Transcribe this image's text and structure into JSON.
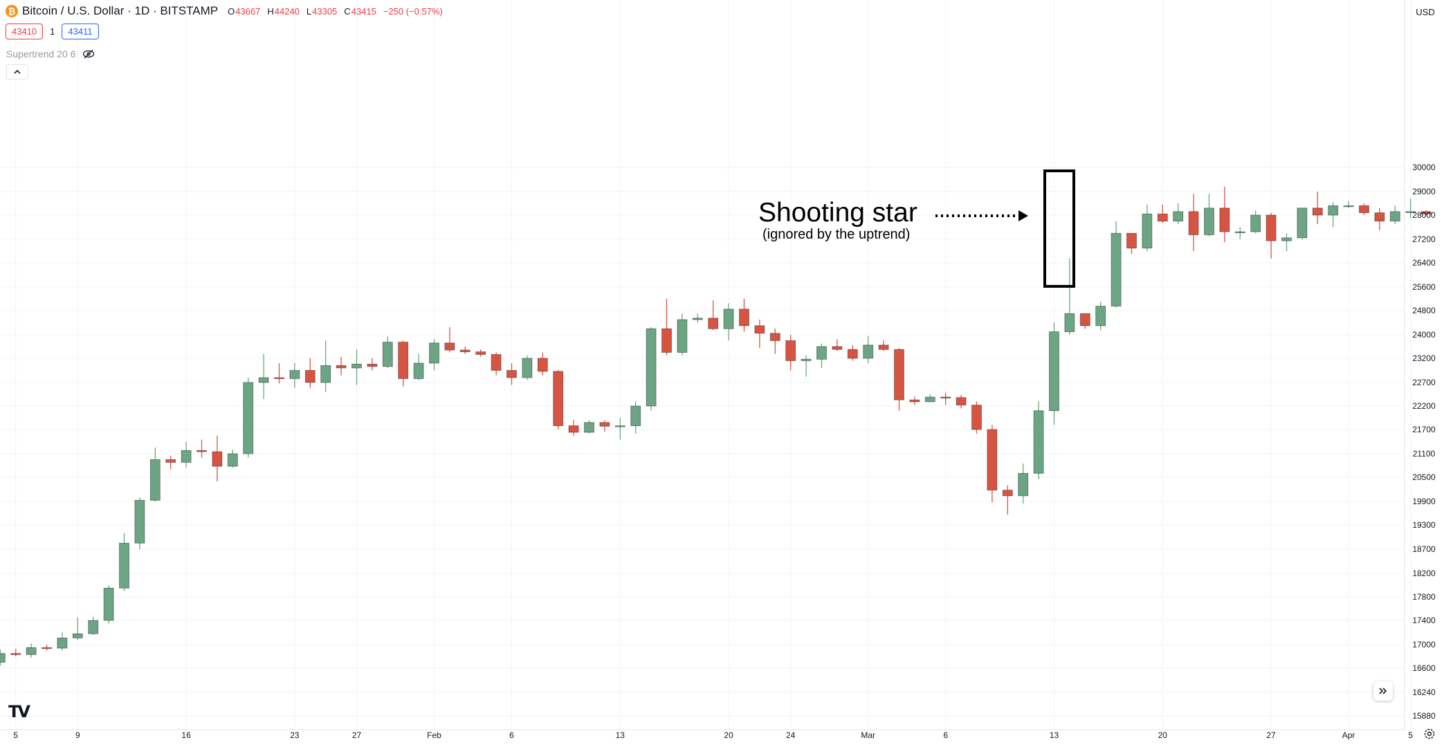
{
  "header": {
    "symbol_badge": "₿",
    "title": "Bitcoin / U.S. Dollar · 1D · BITSTAMP",
    "ohlc": [
      {
        "key": "O",
        "value": "43667"
      },
      {
        "key": "H",
        "value": "44240"
      },
      {
        "key": "L",
        "value": "43305"
      },
      {
        "key": "C",
        "value": "43415"
      }
    ],
    "change": "−250 (−0.57%)",
    "bid": "43410",
    "spread": "1",
    "ask": "43411",
    "indicator": "Supertrend 20 6",
    "hide_icon": "eye-off-icon",
    "collapse_icon": "chevron-up-icon",
    "currency": "USD"
  },
  "annotation": {
    "title": "Shooting star",
    "subtitle": "(ignored by the uptrend)"
  },
  "footer": {
    "logo": "TV",
    "goto_realtime_icon": "double-chevron-right-icon",
    "settings_icon": "gear-icon"
  },
  "colors": {
    "up": "#6ba583",
    "down": "#d75442",
    "grid": "#f0f3fa",
    "text": "#131722"
  },
  "chart_data": {
    "type": "candlestick",
    "y_axis_ticks": [
      15880,
      16240,
      16600,
      17000,
      17400,
      17800,
      18200,
      18700,
      19300,
      19900,
      20500,
      21100,
      21700,
      22200,
      22700,
      23200,
      24000,
      24800,
      25600,
      26400,
      27200,
      28000,
      29000,
      30000
    ],
    "x_axis_labels": [
      {
        "label": "5",
        "index": 1
      },
      {
        "label": "9",
        "index": 5
      },
      {
        "label": "16",
        "index": 12
      },
      {
        "label": "23",
        "index": 19
      },
      {
        "label": "27",
        "index": 23
      },
      {
        "label": "Feb",
        "index": 28
      },
      {
        "label": "6",
        "index": 33
      },
      {
        "label": "13",
        "index": 40
      },
      {
        "label": "20",
        "index": 47
      },
      {
        "label": "24",
        "index": 51
      },
      {
        "label": "Mar",
        "index": 56
      },
      {
        "label": "6",
        "index": 61
      },
      {
        "label": "13",
        "index": 68
      },
      {
        "label": "20",
        "index": 75
      },
      {
        "label": "27",
        "index": 82
      },
      {
        "label": "Apr",
        "index": 87
      },
      {
        "label": "5",
        "index": 91
      }
    ],
    "highlight_index": 69,
    "candles": [
      {
        "o": 16700,
        "h": 16920,
        "l": 16640,
        "c": 16850
      },
      {
        "o": 16850,
        "h": 16930,
        "l": 16800,
        "c": 16830
      },
      {
        "o": 16830,
        "h": 17020,
        "l": 16780,
        "c": 16950
      },
      {
        "o": 16950,
        "h": 17000,
        "l": 16900,
        "c": 16940
      },
      {
        "o": 16940,
        "h": 17200,
        "l": 16900,
        "c": 17110
      },
      {
        "o": 17110,
        "h": 17450,
        "l": 17080,
        "c": 17180
      },
      {
        "o": 17180,
        "h": 17460,
        "l": 17160,
        "c": 17400
      },
      {
        "o": 17400,
        "h": 18000,
        "l": 17350,
        "c": 17950
      },
      {
        "o": 17950,
        "h": 19100,
        "l": 17900,
        "c": 18850
      },
      {
        "o": 18850,
        "h": 20000,
        "l": 18700,
        "c": 19930
      },
      {
        "o": 19930,
        "h": 21250,
        "l": 19900,
        "c": 20950
      },
      {
        "o": 20950,
        "h": 21050,
        "l": 20700,
        "c": 20880
      },
      {
        "o": 20880,
        "h": 21400,
        "l": 20750,
        "c": 21180
      },
      {
        "o": 21180,
        "h": 21450,
        "l": 21000,
        "c": 21150
      },
      {
        "o": 21150,
        "h": 21550,
        "l": 20400,
        "c": 20780
      },
      {
        "o": 20780,
        "h": 21200,
        "l": 20750,
        "c": 21100
      },
      {
        "o": 21100,
        "h": 22800,
        "l": 21000,
        "c": 22700
      },
      {
        "o": 22700,
        "h": 23350,
        "l": 22350,
        "c": 22800
      },
      {
        "o": 22800,
        "h": 23100,
        "l": 22680,
        "c": 22780
      },
      {
        "o": 22780,
        "h": 23100,
        "l": 22580,
        "c": 22950
      },
      {
        "o": 22950,
        "h": 23200,
        "l": 22580,
        "c": 22700
      },
      {
        "o": 22700,
        "h": 23800,
        "l": 22500,
        "c": 23050
      },
      {
        "o": 23050,
        "h": 23250,
        "l": 22850,
        "c": 23000
      },
      {
        "o": 23000,
        "h": 23500,
        "l": 22650,
        "c": 23080
      },
      {
        "o": 23080,
        "h": 23200,
        "l": 22950,
        "c": 23030
      },
      {
        "o": 23030,
        "h": 23950,
        "l": 23000,
        "c": 23750
      },
      {
        "o": 23750,
        "h": 23800,
        "l": 22620,
        "c": 22780
      },
      {
        "o": 22780,
        "h": 23350,
        "l": 22750,
        "c": 23100
      },
      {
        "o": 23100,
        "h": 23850,
        "l": 22950,
        "c": 23720
      },
      {
        "o": 23720,
        "h": 24250,
        "l": 23400,
        "c": 23480
      },
      {
        "o": 23480,
        "h": 23600,
        "l": 23350,
        "c": 23420
      },
      {
        "o": 23420,
        "h": 23500,
        "l": 23250,
        "c": 23330
      },
      {
        "o": 23330,
        "h": 23400,
        "l": 22850,
        "c": 22950
      },
      {
        "o": 22950,
        "h": 23100,
        "l": 22650,
        "c": 22800
      },
      {
        "o": 22800,
        "h": 23300,
        "l": 22750,
        "c": 23200
      },
      {
        "o": 23200,
        "h": 23400,
        "l": 22850,
        "c": 22930
      },
      {
        "o": 22930,
        "h": 22960,
        "l": 21700,
        "c": 21780
      },
      {
        "o": 21780,
        "h": 21900,
        "l": 21550,
        "c": 21630
      },
      {
        "o": 21630,
        "h": 21900,
        "l": 21600,
        "c": 21850
      },
      {
        "o": 21850,
        "h": 21900,
        "l": 21650,
        "c": 21770
      },
      {
        "o": 21770,
        "h": 21950,
        "l": 21450,
        "c": 21780
      },
      {
        "o": 21780,
        "h": 22300,
        "l": 21600,
        "c": 22200
      },
      {
        "o": 22200,
        "h": 24250,
        "l": 22100,
        "c": 24200
      },
      {
        "o": 24200,
        "h": 25200,
        "l": 23300,
        "c": 23400
      },
      {
        "o": 23400,
        "h": 24700,
        "l": 23300,
        "c": 24500
      },
      {
        "o": 24500,
        "h": 24700,
        "l": 24400,
        "c": 24550
      },
      {
        "o": 24550,
        "h": 25150,
        "l": 24150,
        "c": 24200
      },
      {
        "o": 24200,
        "h": 25050,
        "l": 23800,
        "c": 24850
      },
      {
        "o": 24850,
        "h": 25200,
        "l": 24100,
        "c": 24300
      },
      {
        "o": 24300,
        "h": 24500,
        "l": 23550,
        "c": 24050
      },
      {
        "o": 24050,
        "h": 24200,
        "l": 23350,
        "c": 23800
      },
      {
        "o": 23800,
        "h": 24000,
        "l": 22950,
        "c": 23150
      },
      {
        "o": 23150,
        "h": 23300,
        "l": 22820,
        "c": 23180
      },
      {
        "o": 23180,
        "h": 23700,
        "l": 23000,
        "c": 23600
      },
      {
        "o": 23600,
        "h": 23850,
        "l": 23450,
        "c": 23500
      },
      {
        "o": 23500,
        "h": 23650,
        "l": 23150,
        "c": 23200
      },
      {
        "o": 23200,
        "h": 23950,
        "l": 23100,
        "c": 23650
      },
      {
        "o": 23650,
        "h": 23800,
        "l": 23450,
        "c": 23500
      },
      {
        "o": 23500,
        "h": 23550,
        "l": 22100,
        "c": 22330
      },
      {
        "o": 22330,
        "h": 22400,
        "l": 22220,
        "c": 22290
      },
      {
        "o": 22290,
        "h": 22450,
        "l": 22280,
        "c": 22390
      },
      {
        "o": 22390,
        "h": 22480,
        "l": 22220,
        "c": 22380
      },
      {
        "o": 22380,
        "h": 22440,
        "l": 22150,
        "c": 22220
      },
      {
        "o": 22220,
        "h": 22300,
        "l": 21600,
        "c": 21700
      },
      {
        "o": 21700,
        "h": 21800,
        "l": 19880,
        "c": 20180
      },
      {
        "o": 20180,
        "h": 20300,
        "l": 19570,
        "c": 20040
      },
      {
        "o": 20040,
        "h": 20850,
        "l": 19850,
        "c": 20600
      },
      {
        "o": 20600,
        "h": 22300,
        "l": 20450,
        "c": 22100
      },
      {
        "o": 22100,
        "h": 24400,
        "l": 21800,
        "c": 24100
      },
      {
        "o": 24100,
        "h": 26550,
        "l": 24000,
        "c": 24700
      },
      {
        "o": 24700,
        "h": 24700,
        "l": 24200,
        "c": 24300
      },
      {
        "o": 24300,
        "h": 25100,
        "l": 24150,
        "c": 24950
      },
      {
        "o": 24950,
        "h": 27800,
        "l": 24900,
        "c": 27400
      },
      {
        "o": 27400,
        "h": 27400,
        "l": 26700,
        "c": 26900
      },
      {
        "o": 26900,
        "h": 28450,
        "l": 26800,
        "c": 28050
      },
      {
        "o": 28050,
        "h": 28450,
        "l": 27750,
        "c": 27800
      },
      {
        "o": 27800,
        "h": 28500,
        "l": 27700,
        "c": 28150
      },
      {
        "o": 28150,
        "h": 28900,
        "l": 26800,
        "c": 27350
      },
      {
        "o": 27350,
        "h": 28900,
        "l": 27300,
        "c": 28300
      },
      {
        "o": 28300,
        "h": 29200,
        "l": 27100,
        "c": 27450
      },
      {
        "o": 27450,
        "h": 27600,
        "l": 27200,
        "c": 27450
      },
      {
        "o": 27450,
        "h": 28200,
        "l": 27400,
        "c": 28000
      },
      {
        "o": 28000,
        "h": 28100,
        "l": 26550,
        "c": 27150
      },
      {
        "o": 27150,
        "h": 27400,
        "l": 26800,
        "c": 27250
      },
      {
        "o": 27250,
        "h": 28300,
        "l": 27200,
        "c": 28300
      },
      {
        "o": 28300,
        "h": 29000,
        "l": 27700,
        "c": 28000
      },
      {
        "o": 28000,
        "h": 28550,
        "l": 27600,
        "c": 28400
      },
      {
        "o": 28400,
        "h": 28600,
        "l": 28300,
        "c": 28400
      },
      {
        "o": 28400,
        "h": 28500,
        "l": 28000,
        "c": 28100
      },
      {
        "o": 28100,
        "h": 28300,
        "l": 27500,
        "c": 27800
      },
      {
        "o": 27800,
        "h": 28400,
        "l": 27700,
        "c": 28150
      },
      {
        "o": 28150,
        "h": 28700,
        "l": 27900,
        "c": 28150
      },
      {
        "o": 28150,
        "h": 28200,
        "l": 28000,
        "c": 28050
      }
    ]
  }
}
